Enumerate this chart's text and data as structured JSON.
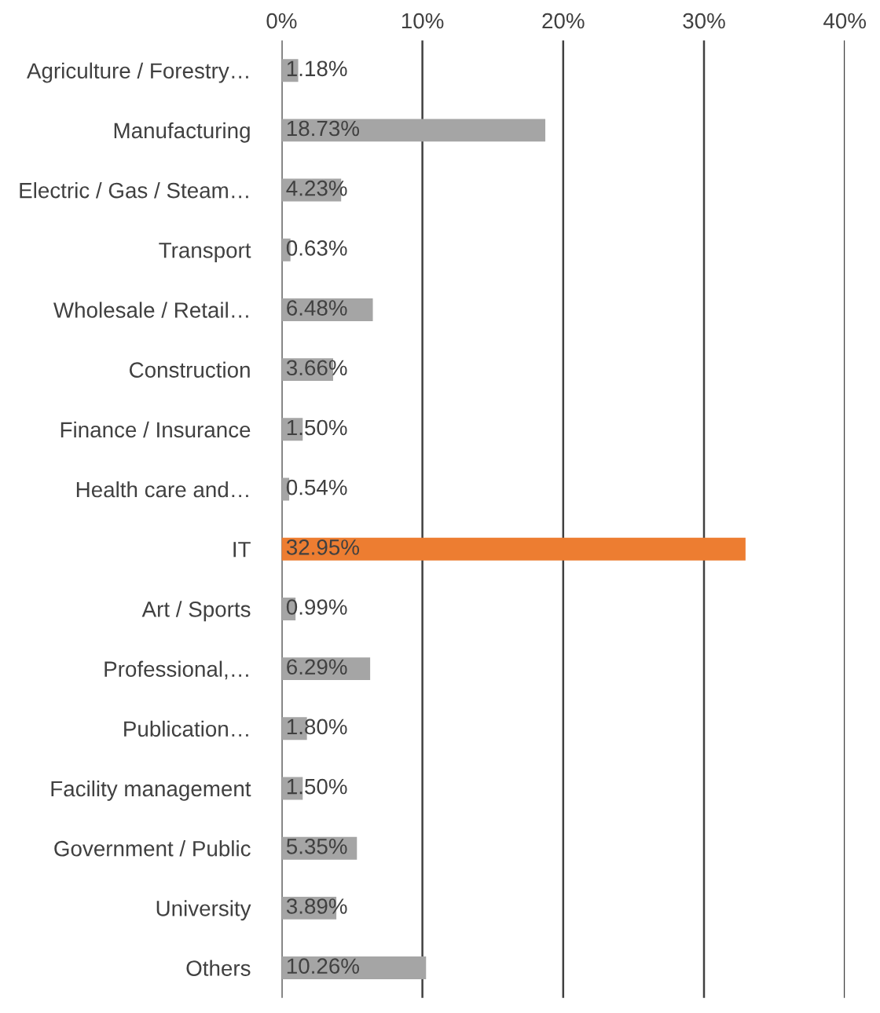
{
  "chart_data": {
    "type": "bar",
    "orientation": "horizontal",
    "categories": [
      "Agriculture / Forestry…",
      "Manufacturing",
      "Electric / Gas / Steam…",
      "Transport",
      "Wholesale / Retail…",
      "Construction",
      "Finance / Insurance",
      "Health care and…",
      "IT",
      "Art / Sports",
      "Professional,…",
      "Publication…",
      "Facility management",
      "Government / Public",
      "University",
      "Others"
    ],
    "values": [
      1.18,
      18.73,
      4.23,
      0.63,
      6.48,
      3.66,
      1.5,
      0.54,
      32.95,
      0.99,
      6.29,
      1.8,
      1.5,
      5.35,
      3.89,
      10.26
    ],
    "value_labels": [
      "1.18%",
      "18.73%",
      "4.23%",
      "0.63%",
      "6.48%",
      "3.66%",
      "1.50%",
      "0.54%",
      "32.95%",
      "0.99%",
      "6.29%",
      "1.80%",
      "1.50%",
      "5.35%",
      "3.89%",
      "10.26%"
    ],
    "colors": [
      "#a5a5a5",
      "#a5a5a5",
      "#a5a5a5",
      "#a5a5a5",
      "#a5a5a5",
      "#a5a5a5",
      "#a5a5a5",
      "#a5a5a5",
      "#ed7d31",
      "#a5a5a5",
      "#a5a5a5",
      "#a5a5a5",
      "#a5a5a5",
      "#a5a5a5",
      "#a5a5a5",
      "#a5a5a5"
    ],
    "xlim": [
      0,
      40
    ],
    "xticks": [
      {
        "value": 0,
        "label": "0%"
      },
      {
        "value": 10,
        "label": "10%"
      },
      {
        "value": 20,
        "label": "20%"
      },
      {
        "value": 30,
        "label": "30%"
      },
      {
        "value": 40,
        "label": "40%"
      }
    ],
    "grid": "x",
    "legend": false
  }
}
